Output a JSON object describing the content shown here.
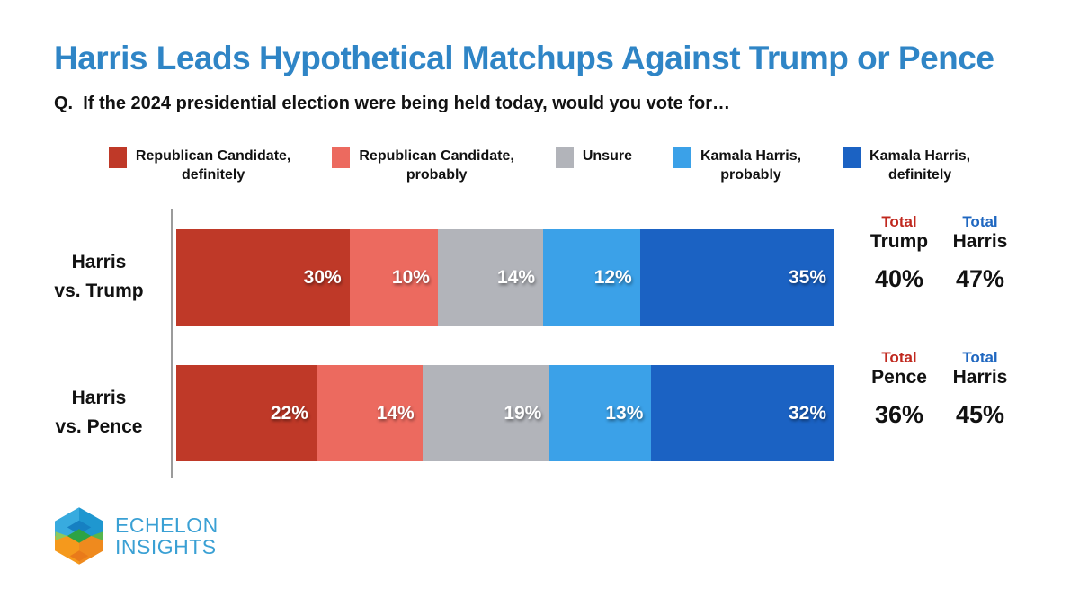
{
  "header": {
    "title": "Harris Leads Hypothetical Matchups Against Trump or Pence",
    "question": "Q.  If the 2024 presidential election were being held today, would you vote for…"
  },
  "colors": {
    "title_blue": "#2f85c6",
    "axis_gray": "#9b9b9b",
    "total_label_red": "#c0281e",
    "total_label_blue": "#1f67c0",
    "brand_blue": "#3aa0d4"
  },
  "legend": {
    "items": [
      {
        "lines": [
          "Republican Candidate,",
          "definitely"
        ],
        "color": "#bf3928"
      },
      {
        "lines": [
          "Republican Candidate,",
          "probably"
        ],
        "color": "#ec6a5f"
      },
      {
        "lines": [
          "Unsure"
        ],
        "color": "#b2b4ba"
      },
      {
        "lines": [
          "Kamala Harris,",
          "probably"
        ],
        "color": "#3ba1e8"
      },
      {
        "lines": [
          "Kamala Harris,",
          "definitely"
        ],
        "color": "#1b62c3"
      }
    ]
  },
  "chart_data": {
    "type": "bar",
    "stacked": true,
    "orientation": "horizontal",
    "value_suffix": "%",
    "categories": [
      "Harris vs. Trump",
      "Harris vs. Pence"
    ],
    "category_lines": [
      [
        "Harris",
        "vs. Trump"
      ],
      [
        "Harris",
        "vs. Pence"
      ]
    ],
    "series": [
      {
        "name": "Republican Candidate, definitely",
        "color": "#bf3928",
        "values": [
          30,
          22
        ]
      },
      {
        "name": "Republican Candidate, probably",
        "color": "#ec6a5f",
        "values": [
          10,
          14
        ]
      },
      {
        "name": "Unsure",
        "color": "#b2b4ba",
        "values": [
          14,
          19
        ]
      },
      {
        "name": "Kamala Harris, probably",
        "color": "#3ba1e8",
        "values": [
          12,
          13
        ]
      },
      {
        "name": "Kamala Harris, definitely",
        "color": "#1b62c3",
        "values": [
          35,
          32
        ]
      }
    ],
    "totals": [
      {
        "left": {
          "prefix": "Total",
          "name": "Trump",
          "value": "40%"
        },
        "right": {
          "prefix": "Total",
          "name": "Harris",
          "value": "47%"
        }
      },
      {
        "left": {
          "prefix": "Total",
          "name": "Pence",
          "value": "36%"
        },
        "right": {
          "prefix": "Total",
          "name": "Harris",
          "value": "45%"
        }
      }
    ]
  },
  "footer": {
    "brand_line1": "ECHELON",
    "brand_line2": "INSIGHTS"
  }
}
